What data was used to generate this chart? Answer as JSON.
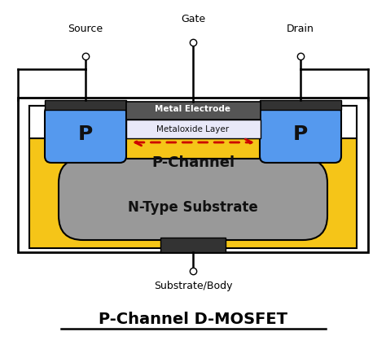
{
  "title": "P-Channel D-MOSFET",
  "bg_color": "#ffffff",
  "yellow_color": "#f5c518",
  "gray_color": "#999999",
  "blue_color": "#5599ee",
  "dark_color": "#333333",
  "metal_color": "#555555",
  "oxide_color": "#e8e8e8",
  "white_color": "#ffffff",
  "arrow_color": "#cc0000",
  "line_color": "#000000",
  "font_color": "#000000",
  "source_label": "Source",
  "drain_label": "Drain",
  "gate_label": "Gate",
  "substrate_label": "Substrate/Body",
  "p_label": "P",
  "p_channel_label": "P-Channel",
  "n_substrate_label": "N-Type Substrate",
  "metal_electrode_label": "Metal Electrode",
  "oxide_label": "Metaloxide Layer"
}
